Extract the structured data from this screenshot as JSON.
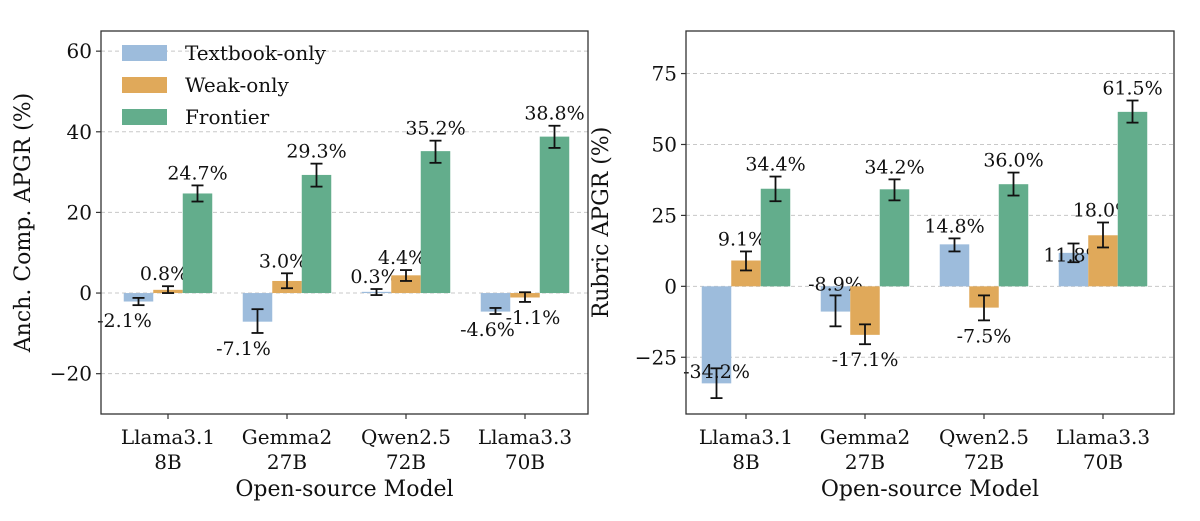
{
  "chart_data": [
    {
      "type": "bar",
      "id": "left",
      "title": "",
      "xlabel": "Open-source Model",
      "ylabel": "Anch. Comp. APGR (%)",
      "ylim": [
        -30,
        65
      ],
      "yticks": [
        -20,
        0,
        20,
        40,
        60
      ],
      "ytick_labels": [
        "−20",
        "0",
        "20",
        "40",
        "60"
      ],
      "grid": true,
      "legend": {
        "placement": "top-left",
        "entries": [
          "Textbook-only",
          "Weak-only",
          "Frontier"
        ]
      },
      "categories": [
        [
          "Llama3.1",
          "8B"
        ],
        [
          "Gemma2",
          "27B"
        ],
        [
          "Qwen2.5",
          "72B"
        ],
        [
          "Llama3.3",
          "70B"
        ]
      ],
      "series": [
        {
          "name": "Textbook-only",
          "color": "#9dbcdc",
          "values": [
            -2.1,
            -7.1,
            0.3,
            -4.6
          ],
          "labels": [
            "-2.1%",
            "-7.1%",
            "0.3%",
            "-4.6%"
          ],
          "errors": [
            [
              -3.0,
              -1.2
            ],
            [
              -9.9,
              -4.0
            ],
            [
              -0.5,
              1.0
            ],
            [
              -5.2,
              -3.7
            ]
          ]
        },
        {
          "name": "Weak-only",
          "color": "#e0a95a",
          "values": [
            0.8,
            3.0,
            4.4,
            -1.1
          ],
          "labels": [
            "0.8%",
            "3.0%",
            "4.4%",
            "-1.1%"
          ],
          "errors": [
            [
              0.0,
              1.7
            ],
            [
              1.2,
              4.9
            ],
            [
              3.0,
              5.7
            ],
            [
              -2.2,
              0.2
            ]
          ]
        },
        {
          "name": "Frontier",
          "color": "#63ad8c",
          "values": [
            24.7,
            29.3,
            35.2,
            38.8
          ],
          "labels": [
            "24.7%",
            "29.3%",
            "35.2%",
            "38.8%"
          ],
          "errors": [
            [
              22.7,
              26.7
            ],
            [
              26.4,
              32.1
            ],
            [
              32.3,
              37.8
            ],
            [
              36.0,
              41.5
            ]
          ]
        }
      ]
    },
    {
      "type": "bar",
      "id": "right",
      "title": "",
      "xlabel": "Open-source Model",
      "ylabel": "Rubric APGR (%)",
      "ylim": [
        -45,
        90
      ],
      "yticks": [
        -25,
        0,
        25,
        50,
        75
      ],
      "ytick_labels": [
        "−25",
        "0",
        "25",
        "50",
        "75"
      ],
      "grid": true,
      "legend": null,
      "categories": [
        [
          "Llama3.1",
          "8B"
        ],
        [
          "Gemma2",
          "27B"
        ],
        [
          "Qwen2.5",
          "72B"
        ],
        [
          "Llama3.3",
          "70B"
        ]
      ],
      "series": [
        {
          "name": "Textbook-only",
          "color": "#9dbcdc",
          "values": [
            -34.2,
            -8.9,
            14.8,
            11.8
          ],
          "labels": [
            "-34.2%",
            "-8.9%",
            "14.8%",
            "11.8%"
          ],
          "errors": [
            [
              -39.4,
              -28.9
            ],
            [
              -14.1,
              -3.2
            ],
            [
              12.3,
              16.9
            ],
            [
              8.5,
              15.1
            ]
          ]
        },
        {
          "name": "Weak-only",
          "color": "#e0a95a",
          "values": [
            9.1,
            -17.1,
            -7.5,
            18.0
          ],
          "labels": [
            "9.1%",
            "-17.1%",
            "-7.5%",
            "18.0%"
          ],
          "errors": [
            [
              5.6,
              12.3
            ],
            [
              -20.4,
              -13.4
            ],
            [
              -12.0,
              -3.2
            ],
            [
              13.7,
              22.5
            ]
          ]
        },
        {
          "name": "Frontier",
          "color": "#63ad8c",
          "values": [
            34.4,
            34.2,
            36.0,
            61.5
          ],
          "labels": [
            "34.4%",
            "34.2%",
            "36.0%",
            "61.5%"
          ],
          "errors": [
            [
              30.0,
              38.7
            ],
            [
              30.3,
              37.7
            ],
            [
              32.0,
              40.1
            ],
            [
              57.7,
              65.5
            ]
          ]
        }
      ]
    }
  ]
}
